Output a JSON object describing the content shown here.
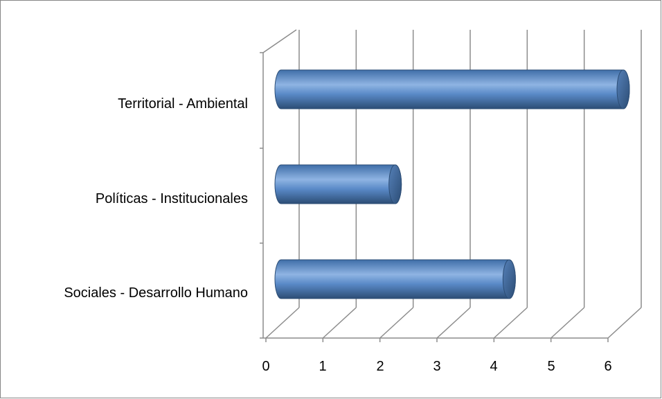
{
  "chart_data": {
    "type": "bar",
    "orientation": "horizontal",
    "style": "3d-cylinder",
    "categories": [
      "Territorial - Ambiental",
      "Políticas - Institucionales",
      "Sociales - Desarrollo Humano"
    ],
    "values": [
      6,
      2,
      4
    ],
    "xlim": [
      0,
      6
    ],
    "x_ticks": [
      "0",
      "1",
      "2",
      "3",
      "4",
      "5",
      "6"
    ],
    "grid": true,
    "legend": "none",
    "colors": {
      "bar_main": "#4f81bd",
      "bar_light": "#8fb4e3",
      "bar_dark": "#2c4d75",
      "bar_cap": "#3a6193",
      "grid": "#8c8c8c"
    }
  }
}
